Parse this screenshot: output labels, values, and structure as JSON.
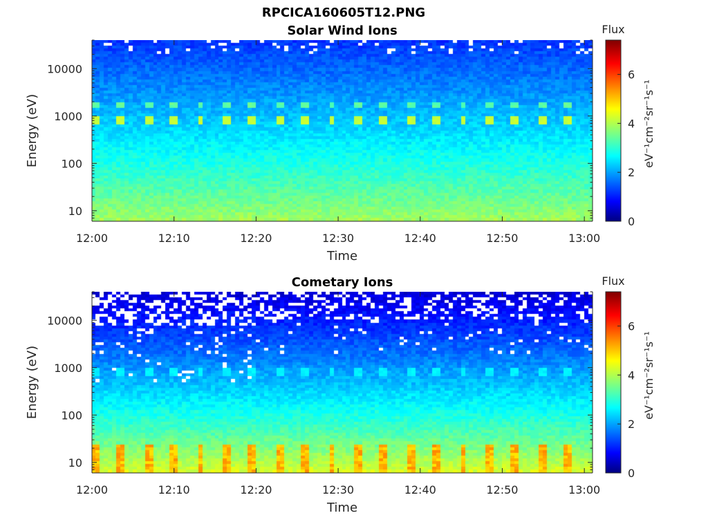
{
  "figure": {
    "title": "RPCICA160605T12.PNG"
  },
  "chart_data": [
    {
      "type": "heatmap",
      "title": "Solar Wind Ions",
      "xlabel": "Time",
      "ylabel": "Energy (eV)",
      "x_ticks": [
        "12:00",
        "12:10",
        "12:20",
        "12:30",
        "12:40",
        "12:50",
        "13:00"
      ],
      "x_range": [
        "12:00",
        "13:01"
      ],
      "y_scale": "log",
      "y_ticks": [
        10,
        100,
        1000,
        10000
      ],
      "y_range": [
        6,
        40000
      ],
      "colorbar": {
        "title": "Flux",
        "label": "eV⁻¹cm⁻²sr⁻¹s⁻¹",
        "ticks": [
          0,
          2,
          4,
          6
        ],
        "range": [
          0,
          7.4
        ],
        "colormap": "jet"
      },
      "features": {
        "background_low_energy_log_flux": 4.0,
        "background_high_energy_log_flux": 1.3,
        "peak_energy_eV": 800,
        "peak_log_flux": 4.2,
        "secondary_peak_energy_eV": 1600
      }
    },
    {
      "type": "heatmap",
      "title": "Cometary Ions",
      "xlabel": "Time",
      "ylabel": "Energy (eV)",
      "x_ticks": [
        "12:00",
        "12:10",
        "12:20",
        "12:30",
        "12:40",
        "12:50",
        "13:00"
      ],
      "x_range": [
        "12:00",
        "13:01"
      ],
      "y_scale": "log",
      "y_ticks": [
        10,
        100,
        1000,
        10000
      ],
      "y_range": [
        6,
        40000
      ],
      "colorbar": {
        "title": "Flux",
        "label": "eV⁻¹cm⁻²sr⁻¹s⁻¹",
        "ticks": [
          0,
          2,
          4,
          6
        ],
        "range": [
          0,
          7.4
        ],
        "colormap": "jet"
      },
      "features": {
        "background_low_energy_log_flux": 4.4,
        "background_high_energy_log_flux": 0.6,
        "low_energy_burst_energy_eV": 12,
        "low_energy_burst_log_flux": 5.3,
        "peak_energy_eV": 780,
        "peak_log_flux": 2.7
      }
    }
  ]
}
